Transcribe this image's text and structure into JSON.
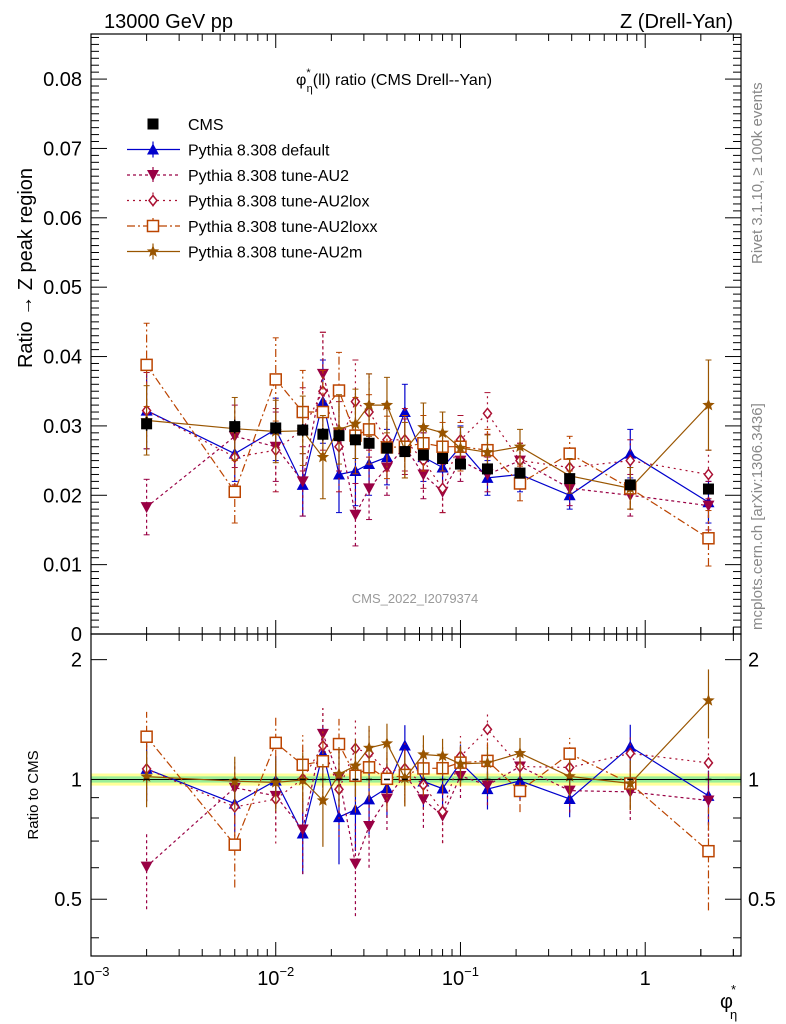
{
  "header": {
    "left": "13000 GeV pp",
    "right": "Z (Drell-Yan)"
  },
  "side_labels": {
    "rivet": "Rivet 3.1.10, ≥ 100k events",
    "mcplots": "mcplots.cern.ch [arXiv:1306.3436]"
  },
  "watermark": "CMS_2022_I2079374",
  "chart_data": {
    "type": "scatter",
    "title": {
      "pre": "φ",
      "sup": "*",
      "sub": "η",
      "post": "(ll) ratio (CMS Drell--Yan)"
    },
    "xlabel": {
      "main": "φ",
      "sup": "*",
      "sub": "η"
    },
    "ylabel": "Ratio → Z peak region",
    "ratio_ylabel": "Ratio to CMS",
    "xscale": "log",
    "xlim": [
      0.001,
      3.3
    ],
    "ylim": [
      0,
      0.0865
    ],
    "ratio_ylim": [
      0.36,
      2.32
    ],
    "legend_position": "top-left",
    "x_tick_labels": [
      {
        "v": 0.001,
        "b": "10",
        "e": "−3"
      },
      {
        "v": 0.01,
        "b": "10",
        "e": "−2"
      },
      {
        "v": 0.1,
        "b": "10",
        "e": "−1"
      },
      {
        "v": 1,
        "b": "1",
        "e": ""
      }
    ],
    "y_ticks": [
      {
        "v": 0,
        "t": "0"
      },
      {
        "v": 0.01,
        "t": "0.01"
      },
      {
        "v": 0.02,
        "t": "0.02"
      },
      {
        "v": 0.03,
        "t": "0.03"
      },
      {
        "v": 0.04,
        "t": "0.04"
      },
      {
        "v": 0.05,
        "t": "0.05"
      },
      {
        "v": 0.06,
        "t": "0.06"
      },
      {
        "v": 0.07,
        "t": "0.07"
      },
      {
        "v": 0.08,
        "t": "0.08"
      }
    ],
    "ratio_ticks": [
      {
        "v": 0.5,
        "t": "0.5"
      },
      {
        "v": 1,
        "t": "1"
      },
      {
        "v": 2,
        "t": "2"
      }
    ],
    "x": [
      0.002,
      0.006,
      0.01,
      0.014,
      0.018,
      0.022,
      0.027,
      0.032,
      0.04,
      0.05,
      0.063,
      0.08,
      0.1,
      0.14,
      0.21,
      0.39,
      0.83,
      2.2
    ],
    "data": {
      "name": "CMS",
      "values": [
        0.0303,
        0.0299,
        0.0297,
        0.0294,
        0.0288,
        0.0286,
        0.028,
        0.0275,
        0.0268,
        0.0263,
        0.0258,
        0.0253,
        0.0245,
        0.0238,
        0.0232,
        0.0224,
        0.0215,
        0.0209
      ],
      "errors": [
        0.001,
        0.001,
        0.0009,
        0.0009,
        0.0009,
        0.0009,
        0.0008,
        0.0008,
        0.0008,
        0.0008,
        0.0008,
        0.0008,
        0.0007,
        0.0007,
        0.0007,
        0.0007,
        0.0007,
        0.0008
      ]
    },
    "series": [
      {
        "name": "Pythia 8.308 default",
        "color": "#0000cc",
        "marker": "triangle-up",
        "dash": "",
        "values": [
          0.0322,
          0.026,
          0.0295,
          0.0215,
          0.0335,
          0.023,
          0.0235,
          0.0245,
          0.0255,
          0.032,
          0.0255,
          0.024,
          0.027,
          0.0225,
          0.023,
          0.02,
          0.026,
          0.019
        ],
        "errors": [
          0.0055,
          0.004,
          0.0045,
          0.0045,
          0.006,
          0.0055,
          0.005,
          0.0045,
          0.004,
          0.004,
          0.0035,
          0.003,
          0.003,
          0.0025,
          0.0025,
          0.002,
          0.0035,
          0.003
        ]
      },
      {
        "name": "Pythia 8.308 tune-AU2",
        "color": "#990044",
        "marker": "triangle-down",
        "dash": "3,3",
        "values": [
          0.0183,
          0.0285,
          0.027,
          0.022,
          0.0375,
          0.029,
          0.0172,
          0.021,
          0.024,
          0.027,
          0.023,
          0.0205,
          0.025,
          0.023,
          0.025,
          0.021,
          0.02,
          0.0185
        ],
        "errors": [
          0.004,
          0.0045,
          0.005,
          0.005,
          0.006,
          0.0055,
          0.0045,
          0.0045,
          0.004,
          0.004,
          0.0035,
          0.003,
          0.003,
          0.0025,
          0.0025,
          0.0025,
          0.003,
          0.0035
        ]
      },
      {
        "name": "Pythia 8.308 tune-AU2lox",
        "color": "#aa1133",
        "marker": "diamond-open",
        "dash": "2,4",
        "values": [
          0.0322,
          0.0255,
          0.0265,
          0.0295,
          0.035,
          0.027,
          0.0335,
          0.032,
          0.028,
          0.028,
          0.025,
          0.021,
          0.028,
          0.0318,
          0.025,
          0.024,
          0.025,
          0.023
        ],
        "errors": [
          0.0055,
          0.004,
          0.006,
          0.006,
          0.0085,
          0.0065,
          0.006,
          0.0055,
          0.0045,
          0.0045,
          0.004,
          0.0035,
          0.0035,
          0.003,
          0.0025,
          0.0025,
          0.003,
          0.0035
        ]
      },
      {
        "name": "Pythia 8.308 tune-AU2loxx",
        "color": "#bb4400",
        "marker": "square-open",
        "dash": "8,3,2,3",
        "values": [
          0.0388,
          0.0205,
          0.0367,
          0.032,
          0.032,
          0.0351,
          0.0286,
          0.0295,
          0.0269,
          0.027,
          0.0275,
          0.027,
          0.027,
          0.0265,
          0.0217,
          0.026,
          0.021,
          0.0138
        ],
        "errors": [
          0.006,
          0.0045,
          0.006,
          0.006,
          0.006,
          0.0055,
          0.0055,
          0.005,
          0.0045,
          0.0045,
          0.004,
          0.0035,
          0.0035,
          0.003,
          0.0025,
          0.0025,
          0.003,
          0.004
        ]
      },
      {
        "name": "Pythia 8.308 tune-AU2m",
        "color": "#995500",
        "marker": "star",
        "dash": "",
        "values": [
          0.0308,
          0.0296,
          0.0292,
          0.0293,
          0.0255,
          0.0295,
          0.0303,
          0.033,
          0.033,
          0.0265,
          0.0298,
          0.029,
          0.0268,
          0.0262,
          0.027,
          0.0228,
          0.021,
          0.033
        ],
        "errors": [
          0.005,
          0.0045,
          0.0045,
          0.005,
          0.006,
          0.005,
          0.005,
          0.0045,
          0.004,
          0.004,
          0.0035,
          0.003,
          0.003,
          0.0025,
          0.0025,
          0.0025,
          0.003,
          0.0065
        ]
      }
    ]
  }
}
